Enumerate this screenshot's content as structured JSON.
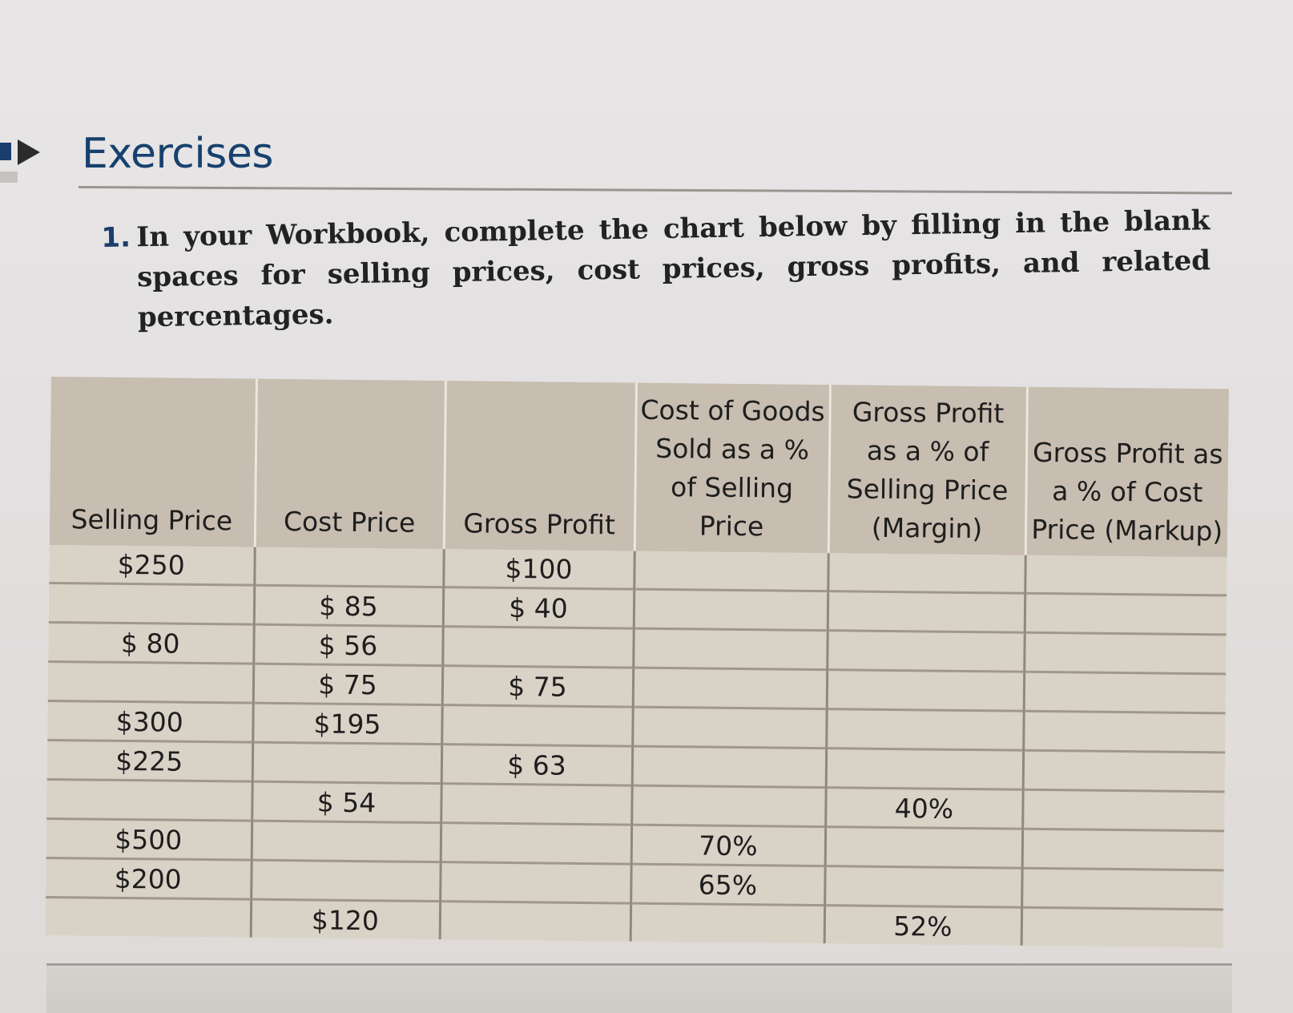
{
  "heading": "Exercises",
  "exercise": {
    "number": "1.",
    "text": "In your Workbook, complete the chart below by filling in the blank spaces for selling prices, cost prices, gross profits, and related percentages."
  },
  "table": {
    "headers": [
      "Selling Price",
      "Cost Price",
      "Gross Profit",
      "Cost of Goods Sold as a % of Selling Price",
      "Gross Profit as a % of Selling Price (Margin)",
      "Gross Profit as a % of Cost Price (Markup)"
    ],
    "rows": [
      [
        "$250",
        "",
        "$100",
        "",
        "",
        ""
      ],
      [
        "",
        "$ 85",
        "$ 40",
        "",
        "",
        ""
      ],
      [
        "$ 80",
        "$ 56",
        "",
        "",
        "",
        ""
      ],
      [
        "",
        "$ 75",
        "$ 75",
        "",
        "",
        ""
      ],
      [
        "$300",
        "$195",
        "",
        "",
        "",
        ""
      ],
      [
        "$225",
        "",
        "$ 63",
        "",
        "",
        ""
      ],
      [
        "",
        "$ 54",
        "",
        "",
        "40%",
        ""
      ],
      [
        "$500",
        "",
        "",
        "70%",
        "",
        ""
      ],
      [
        "$200",
        "",
        "",
        "65%",
        "",
        ""
      ],
      [
        "",
        "$120",
        "",
        "",
        "52%",
        ""
      ]
    ]
  },
  "colors": {
    "heading": "#17406e",
    "header_bg": "#c7bdb0",
    "row_bg": "#d9d2c7"
  },
  "icons": [
    "triangle-marker-icon"
  ]
}
